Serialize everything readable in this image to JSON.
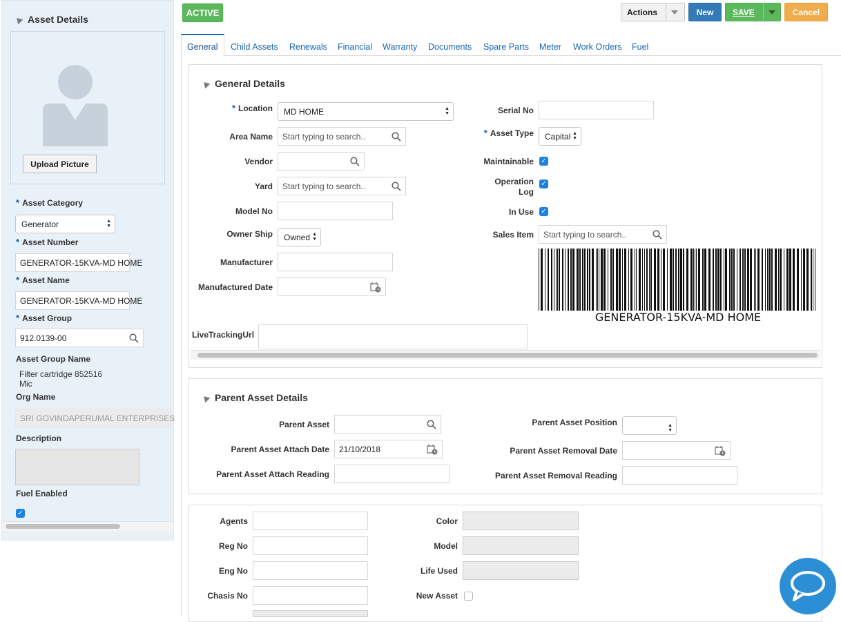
{
  "status_badge": "ACTIVE",
  "toolbar": {
    "actions": "Actions",
    "new": "New",
    "save": "SAVE",
    "cancel": "Cancel"
  },
  "tabs": [
    "General",
    "Child Assets",
    "Renewals",
    "Financial",
    "Warranty",
    "Documents",
    "Spare Parts",
    "Meter",
    "Work Orders",
    "Fuel"
  ],
  "sidebar": {
    "title": "Asset Details",
    "upload_picture": "Upload Picture",
    "asset_category_label": "Asset Category",
    "asset_category_value": "Generator",
    "asset_number_label": "Asset Number",
    "asset_number_value": "GENERATOR-15KVA-MD HOME",
    "asset_name_label": "Asset Name",
    "asset_name_value": "GENERATOR-15KVA-MD HOME",
    "asset_group_label": "Asset Group",
    "asset_group_value": "912.0139-00",
    "asset_group_name_label": "Asset Group Name",
    "asset_group_name_line1": "Filter cartridge 852516",
    "asset_group_name_line2": "Mic",
    "org_name_label": "Org Name",
    "org_name_value": "SRI GOVINDAPERUMAL ENTERPRISES",
    "description_label": "Description",
    "description_value": "",
    "fuel_enabled_label": "Fuel Enabled",
    "fuel_enabled": true
  },
  "general_details": {
    "title": "General Details",
    "location_label": "Location",
    "location_value": "MD HOME",
    "area_name_label": "Area Name",
    "area_name_placeholder": "Start typing to search..",
    "vendor_label": "Vendor",
    "vendor_value": "",
    "yard_label": "Yard",
    "yard_placeholder": "Start typing to search..",
    "model_no_label": "Model No",
    "model_no_value": "",
    "owner_ship_label": "Owner Ship",
    "owner_ship_value": "Owned",
    "manufacturer_label": "Manufacturer",
    "manufacturer_value": "",
    "manufactured_date_label": "Manufactured Date",
    "manufactured_date_value": "",
    "live_tracking_url_label": "LiveTrackingUrl",
    "live_tracking_url_value": "",
    "serial_no_label": "Serial No",
    "serial_no_value": "",
    "asset_type_label": "Asset Type",
    "asset_type_value": "Capital",
    "maintainable_label": "Maintainable",
    "maintainable": true,
    "operation_log_label_1": "Operation",
    "operation_log_label_2": "Log",
    "operation_log": true,
    "in_use_label": "In Use",
    "in_use": true,
    "sales_item_label": "Sales Item",
    "sales_item_placeholder": "Start typing to search..",
    "barcode_text": "GENERATOR-15KVA-MD HOME"
  },
  "parent_asset_details": {
    "title": "Parent Asset Details",
    "parent_asset_label": "Parent Asset",
    "parent_asset_value": "",
    "attach_date_label": "Parent Asset Attach Date",
    "attach_date_value": "21/10/2018",
    "attach_reading_label": "Parent Asset Attach Reading",
    "attach_reading_value": "",
    "position_label": "Parent Asset Position",
    "position_value": "",
    "removal_date_label": "Parent Asset Removal Date",
    "removal_date_value": "",
    "removal_reading_label": "Parent Asset Removal Reading",
    "removal_reading_value": ""
  },
  "vehicle_details": {
    "agents_label": "Agents",
    "reg_no_label": "Reg No",
    "eng_no_label": "Eng No",
    "chasis_no_label": "Chasis No",
    "color_label": "Color",
    "model_label": "Model",
    "life_used_label": "Life Used",
    "new_asset_label": "New Asset",
    "new_asset": false
  },
  "colors": {
    "accent": "#1a67b4",
    "active": "#5cb85c",
    "new": "#337ab7",
    "save": "#5cb85c",
    "cancel": "#f0ad4e",
    "chat": "#2c8fd6"
  }
}
